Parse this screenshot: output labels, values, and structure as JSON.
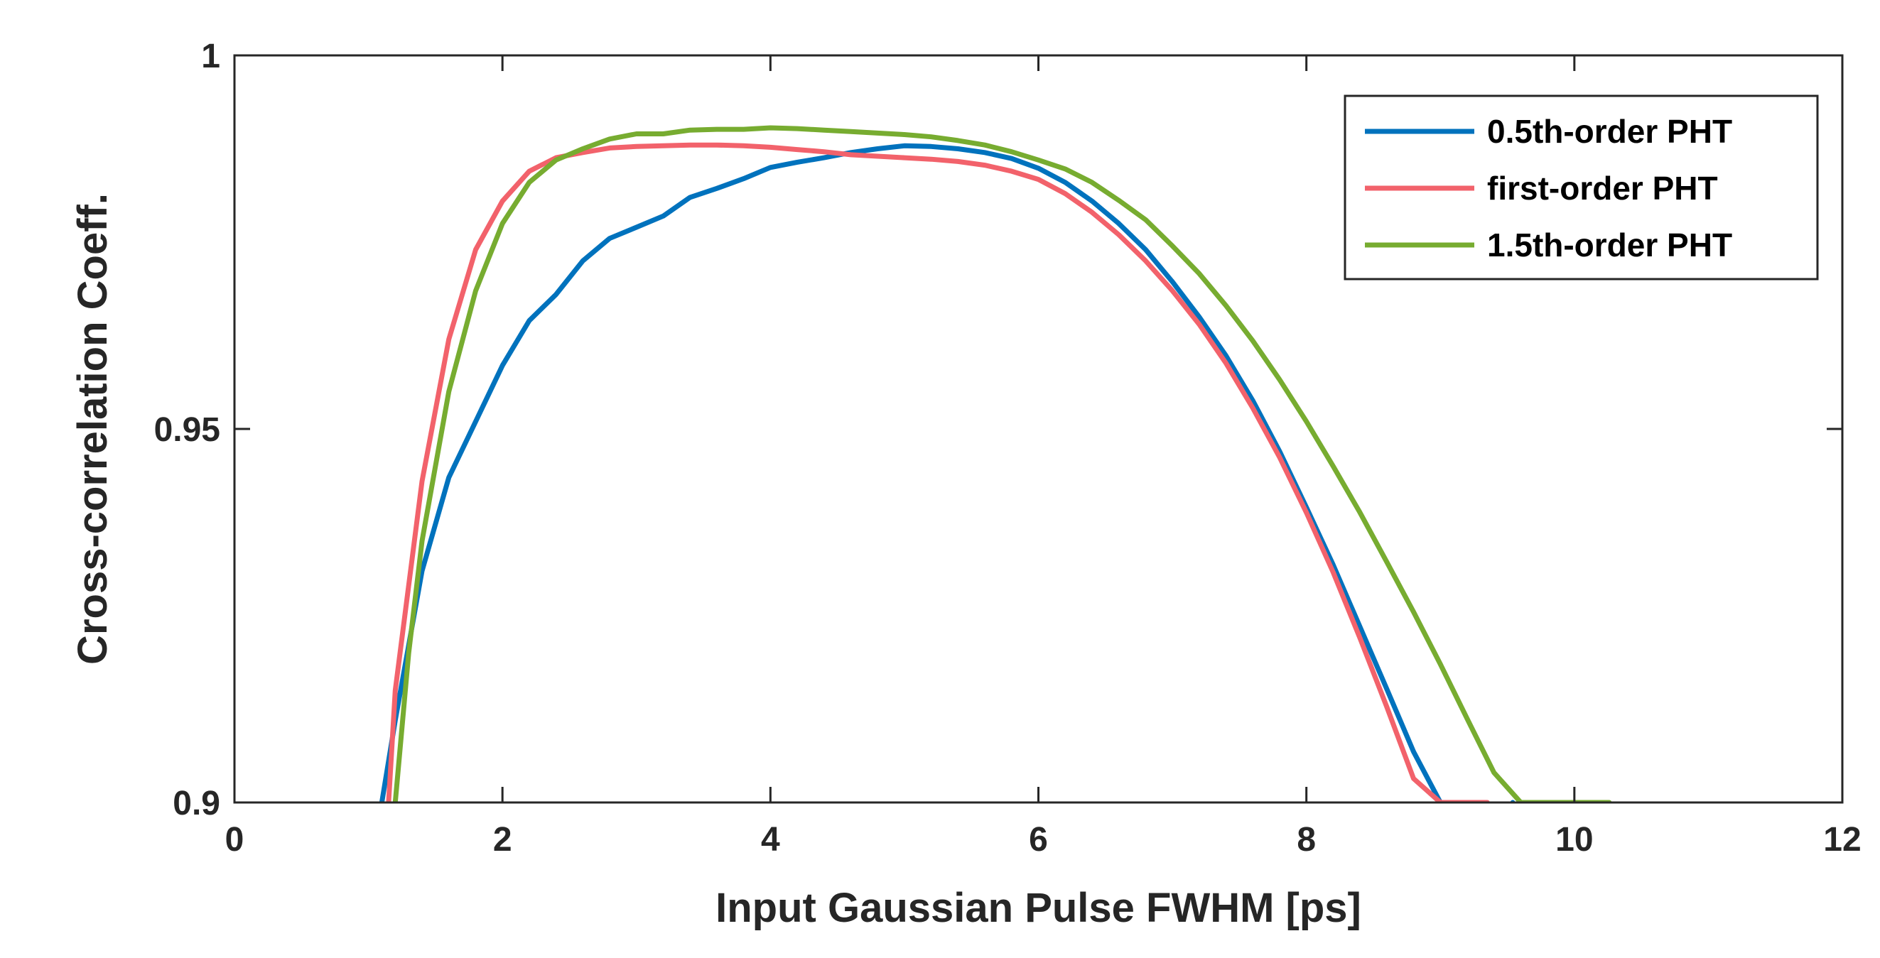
{
  "chart_data": {
    "type": "line",
    "title": "",
    "xlabel": "Input Gaussian Pulse FWHM [ps]",
    "ylabel": "Cross-correlation Coeff.",
    "xlim": [
      0,
      12
    ],
    "ylim": [
      0.9,
      1
    ],
    "xticks": [
      0,
      2,
      4,
      6,
      8,
      10,
      12
    ],
    "xtick_labels": [
      "0",
      "2",
      "4",
      "6",
      "8",
      "10",
      "12"
    ],
    "yticks": [
      0.9,
      0.95,
      1
    ],
    "ytick_labels": [
      "0.9",
      "0.95",
      "1"
    ],
    "grid": false,
    "legend_position": "top-right",
    "series": [
      {
        "name": "0.5th-order PHT",
        "color": "#0072BD",
        "x": [
          1.1,
          1.2,
          1.4,
          1.6,
          1.8,
          2.0,
          2.2,
          2.4,
          2.6,
          2.8,
          3.0,
          3.2,
          3.4,
          3.6,
          3.8,
          4.0,
          4.2,
          4.4,
          4.6,
          4.8,
          5.0,
          5.2,
          5.4,
          5.6,
          5.8,
          6.0,
          6.2,
          6.4,
          6.6,
          6.8,
          7.0,
          7.2,
          7.4,
          7.6,
          7.8,
          8.0,
          8.2,
          8.4,
          8.6,
          8.8,
          9.0,
          9.2,
          9.4,
          9.54
        ],
        "y": [
          0.9,
          0.911,
          0.931,
          0.9435,
          0.951,
          0.9585,
          0.9645,
          0.968,
          0.9725,
          0.9755,
          0.977,
          0.9785,
          0.981,
          0.9822,
          0.9835,
          0.985,
          0.9857,
          0.9863,
          0.987,
          0.9875,
          0.9879,
          0.9878,
          0.9875,
          0.987,
          0.9862,
          0.9849,
          0.983,
          0.9805,
          0.9775,
          0.974,
          0.9697,
          0.965,
          0.9598,
          0.9538,
          0.947,
          0.9395,
          0.9318,
          0.9235,
          0.9152,
          0.9068,
          0.9,
          0.8935,
          0.8862,
          0.9
        ]
      },
      {
        "name": "first-order PHT",
        "color": "#F2626B",
        "x": [
          1.15,
          1.2,
          1.4,
          1.6,
          1.8,
          2.0,
          2.2,
          2.4,
          2.6,
          2.8,
          3.0,
          3.2,
          3.4,
          3.6,
          3.8,
          4.0,
          4.2,
          4.4,
          4.6,
          4.8,
          5.0,
          5.2,
          5.4,
          5.6,
          5.8,
          6.0,
          6.2,
          6.4,
          6.6,
          6.8,
          7.0,
          7.2,
          7.4,
          7.6,
          7.8,
          8.0,
          8.2,
          8.4,
          8.6,
          8.8,
          9.0,
          9.2,
          9.35
        ],
        "y": [
          0.9,
          0.915,
          0.943,
          0.962,
          0.974,
          0.9805,
          0.9845,
          0.9863,
          0.987,
          0.9876,
          0.9878,
          0.9879,
          0.988,
          0.988,
          0.9879,
          0.9877,
          0.9874,
          0.9871,
          0.9867,
          0.9865,
          0.9863,
          0.9861,
          0.9858,
          0.9853,
          0.9845,
          0.9834,
          0.9815,
          0.979,
          0.976,
          0.9725,
          0.9685,
          0.964,
          0.9588,
          0.9528,
          0.9462,
          0.9388,
          0.9308,
          0.922,
          0.9128,
          0.9032,
          0.9,
          0.9,
          0.9
        ]
      },
      {
        "name": "1.5th-order PHT",
        "color": "#77AC30",
        "x": [
          1.2,
          1.3,
          1.4,
          1.6,
          1.8,
          2.0,
          2.2,
          2.4,
          2.6,
          2.8,
          3.0,
          3.2,
          3.4,
          3.6,
          3.8,
          4.0,
          4.2,
          4.4,
          4.6,
          4.8,
          5.0,
          5.2,
          5.4,
          5.6,
          5.8,
          6.0,
          6.2,
          6.4,
          6.6,
          6.8,
          7.0,
          7.2,
          7.4,
          7.6,
          7.8,
          8.0,
          8.2,
          8.4,
          8.6,
          8.8,
          9.0,
          9.2,
          9.4,
          9.6,
          9.8,
          10.0,
          10.26
        ],
        "y": [
          0.9,
          0.92,
          0.935,
          0.955,
          0.9685,
          0.9775,
          0.983,
          0.986,
          0.9875,
          0.9888,
          0.9895,
          0.9895,
          0.99,
          0.9901,
          0.9901,
          0.9903,
          0.9902,
          0.99,
          0.9898,
          0.9896,
          0.9894,
          0.9891,
          0.9886,
          0.988,
          0.9871,
          0.986,
          0.9848,
          0.983,
          0.9806,
          0.978,
          0.9745,
          0.9708,
          0.9665,
          0.9618,
          0.9566,
          0.951,
          0.945,
          0.9388,
          0.9322,
          0.9255,
          0.9185,
          0.9112,
          0.904,
          0.9,
          0.9,
          0.9,
          0.9
        ]
      }
    ]
  }
}
